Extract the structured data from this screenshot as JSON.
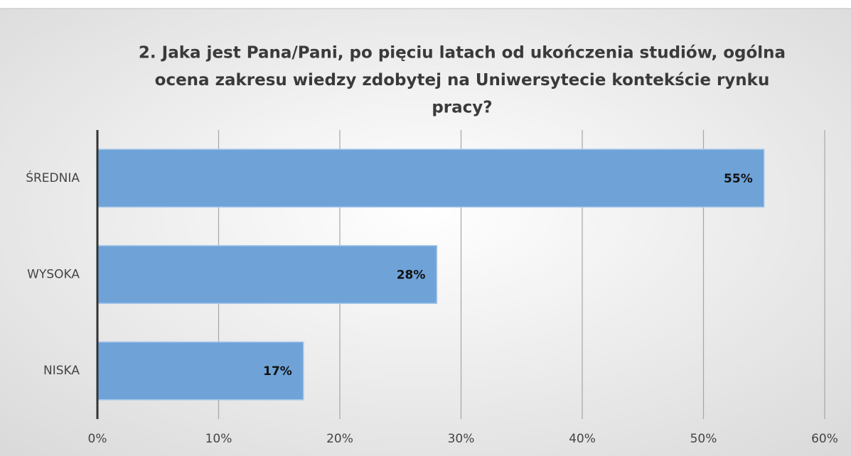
{
  "chart_data": {
    "type": "bar",
    "orientation": "horizontal",
    "title": [
      "2. Jaka jest Pana/Pani, po pięciu latach od ukończenia studiów, ogólna",
      "ocena zakresu wiedzy zdobytej na Uniwersytecie  kontekście rynku",
      "pracy?"
    ],
    "categories": [
      "ŚREDNIA",
      "WYSOKA",
      "NISKA"
    ],
    "values": [
      55,
      28,
      17
    ],
    "value_labels": [
      "55%",
      "28%",
      "17%"
    ],
    "color": "#6fa3d8",
    "xlim": [
      0,
      60
    ],
    "xticks": [
      {
        "value": 0,
        "label": "0%"
      },
      {
        "value": 10,
        "label": "10%"
      },
      {
        "value": 20,
        "label": "20%"
      },
      {
        "value": 30,
        "label": "30%"
      },
      {
        "value": 40,
        "label": "40%"
      },
      {
        "value": 50,
        "label": "50%"
      },
      {
        "value": 60,
        "label": "60%"
      }
    ],
    "grid": true
  }
}
